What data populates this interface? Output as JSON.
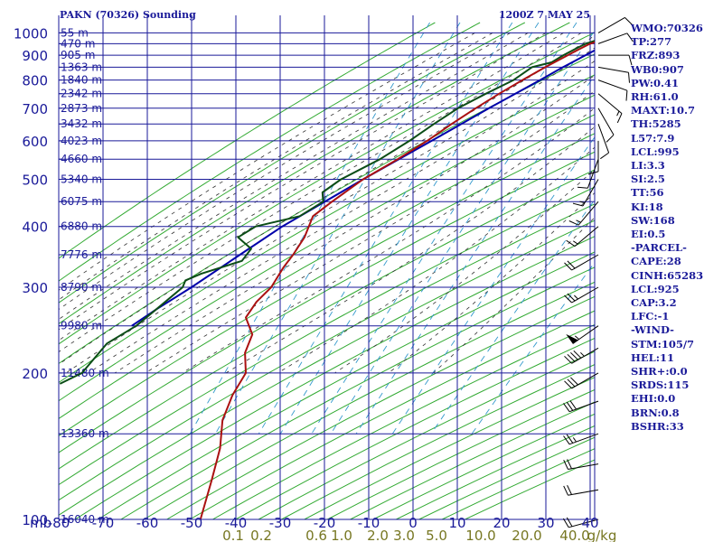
{
  "header": {
    "station": "PAKN (70326) Sounding",
    "datetime": "1200Z  7 MAY 25"
  },
  "colors": {
    "grid": "#1a1a99",
    "dry_adiabat": "#33aa33",
    "moist_adiabat": "#333333",
    "mixing_ratio": "#3399cc",
    "temperature": "#aa1111",
    "dewpoint": "#0b4d16",
    "parcel": "#0000aa",
    "wind_barb": "#000000",
    "mixing_label": "#777722"
  },
  "chart_data": {
    "type": "skew-t",
    "pressure_levels": [
      100,
      200,
      300,
      400,
      500,
      600,
      700,
      800,
      900,
      1000
    ],
    "pressure_tick_labels": [
      "100",
      "200",
      "300",
      "400",
      "500",
      "600",
      "700",
      "800",
      "900",
      "1000"
    ],
    "unit_label": "mb",
    "temperature_ticks": [
      -80,
      -70,
      -60,
      -50,
      -40,
      -30,
      -20,
      -10,
      0,
      10,
      20,
      30,
      40
    ],
    "temperature_tick_labels": [
      "-80",
      "-70",
      "-60",
      "-50",
      "-40",
      "-30",
      "-20",
      "-10",
      "0",
      "10",
      "20",
      "30",
      "40"
    ],
    "height_labels": [
      {
        "p": 100,
        "text": "16040 m"
      },
      {
        "p": 150,
        "text": "13360 m"
      },
      {
        "p": 200,
        "text": "11480 m"
      },
      {
        "p": 250,
        "text": "9980 m"
      },
      {
        "p": 300,
        "text": "8790 m"
      },
      {
        "p": 350,
        "text": "7776 m"
      },
      {
        "p": 400,
        "text": "6880 m"
      },
      {
        "p": 450,
        "text": "6075 m"
      },
      {
        "p": 500,
        "text": "5340 m"
      },
      {
        "p": 550,
        "text": "4660 m"
      },
      {
        "p": 600,
        "text": "4023 m"
      },
      {
        "p": 650,
        "text": "3432 m"
      },
      {
        "p": 700,
        "text": "2873 m"
      },
      {
        "p": 750,
        "text": "2342 m"
      },
      {
        "p": 800,
        "text": "1840 m"
      },
      {
        "p": 850,
        "text": "1363 m"
      },
      {
        "p": 900,
        "text": "905 m"
      },
      {
        "p": 950,
        "text": "470 m"
      },
      {
        "p": 1000,
        "text": "55 m"
      }
    ],
    "mixing_ratio_labels": [
      "0.1",
      "0.2",
      "0.6",
      "1.0",
      "2.0",
      "3.0",
      "5.0",
      "10.0",
      "20.0",
      "40.0",
      "g/kg"
    ],
    "temperature_profile": [
      [
        1004,
        1.5
      ],
      [
        975,
        0.5
      ],
      [
        950,
        -3
      ],
      [
        925,
        -5
      ],
      [
        900,
        -7
      ],
      [
        850,
        -11
      ],
      [
        800,
        -15
      ],
      [
        750,
        -19
      ],
      [
        700,
        -23
      ],
      [
        650,
        -27
      ],
      [
        600,
        -31
      ],
      [
        550,
        -36
      ],
      [
        500,
        -42
      ],
      [
        450,
        -47
      ],
      [
        420,
        -50
      ],
      [
        400,
        -50
      ],
      [
        380,
        -50
      ],
      [
        350,
        -51
      ],
      [
        330,
        -52
      ],
      [
        300,
        -53
      ],
      [
        280,
        -55
      ],
      [
        260,
        -56
      ],
      [
        240,
        -53
      ],
      [
        220,
        -53
      ],
      [
        200,
        -51
      ],
      [
        180,
        -52
      ],
      [
        160,
        -52
      ],
      [
        140,
        -50
      ],
      [
        120,
        -49
      ],
      [
        100,
        -48
      ]
    ],
    "dewpoint_profile": [
      [
        1004,
        0.5
      ],
      [
        980,
        0
      ],
      [
        950,
        -4
      ],
      [
        925,
        -6
      ],
      [
        900,
        -8
      ],
      [
        870,
        -10
      ],
      [
        850,
        -14
      ],
      [
        800,
        -17
      ],
      [
        750,
        -22
      ],
      [
        700,
        -27
      ],
      [
        650,
        -31
      ],
      [
        600,
        -35
      ],
      [
        550,
        -40
      ],
      [
        500,
        -47
      ],
      [
        470,
        -50
      ],
      [
        450,
        -49
      ],
      [
        420,
        -53
      ],
      [
        400,
        -62
      ],
      [
        380,
        -65
      ],
      [
        360,
        -61
      ],
      [
        340,
        -62
      ],
      [
        320,
        -70
      ],
      [
        310,
        -73
      ],
      [
        300,
        -73
      ],
      [
        270,
        -77
      ],
      [
        250,
        -80
      ],
      [
        230,
        -85
      ],
      [
        200,
        -88
      ],
      [
        190,
        -92
      ]
    ],
    "parcel_profile": [
      [
        1004,
        4.3
      ],
      [
        925,
        -1
      ],
      [
        850,
        -7
      ],
      [
        800,
        -11
      ],
      [
        700,
        -20
      ],
      [
        600,
        -30
      ],
      [
        500,
        -42
      ],
      [
        400,
        -56
      ],
      [
        350,
        -63
      ],
      [
        300,
        -71
      ],
      [
        270,
        -77
      ],
      [
        250,
        -81
      ]
    ],
    "wind_barbs": [
      {
        "p": 1000,
        "dir": 60,
        "spd": 10
      },
      {
        "p": 950,
        "dir": 70,
        "spd": 10
      },
      {
        "p": 900,
        "dir": 90,
        "spd": 10
      },
      {
        "p": 850,
        "dir": 100,
        "spd": 10
      },
      {
        "p": 800,
        "dir": 110,
        "spd": 10
      },
      {
        "p": 750,
        "dir": 130,
        "spd": 15
      },
      {
        "p": 700,
        "dir": 150,
        "spd": 10
      },
      {
        "p": 650,
        "dir": 160,
        "spd": 10
      },
      {
        "p": 600,
        "dir": 180,
        "spd": 10
      },
      {
        "p": 550,
        "dir": 200,
        "spd": 10
      },
      {
        "p": 500,
        "dir": 210,
        "spd": 15
      },
      {
        "p": 450,
        "dir": 220,
        "spd": 15
      },
      {
        "p": 400,
        "dir": 230,
        "spd": 15
      },
      {
        "p": 350,
        "dir": 240,
        "spd": 20
      },
      {
        "p": 300,
        "dir": 240,
        "spd": 25
      },
      {
        "p": 250,
        "dir": 235,
        "spd": 55
      },
      {
        "p": 225,
        "dir": 240,
        "spd": 45
      },
      {
        "p": 200,
        "dir": 240,
        "spd": 30
      },
      {
        "p": 175,
        "dir": 250,
        "spd": 30
      },
      {
        "p": 150,
        "dir": 250,
        "spd": 25
      },
      {
        "p": 130,
        "dir": 260,
        "spd": 20
      },
      {
        "p": 115,
        "dir": 260,
        "spd": 20
      },
      {
        "p": 100,
        "dir": 255,
        "spd": 20
      }
    ],
    "grid": true
  },
  "indices": [
    "WMO:70326",
    "TP:277",
    "FRZ:893",
    "WB0:907",
    "PW:0.41",
    "RH:61.0",
    "MAXT:10.7",
    "TH:5285",
    "L57:7.9",
    "LCL:995",
    "LI:3.3",
    "SI:2.5",
    "TT:56",
    "KI:18",
    "SW:168",
    "EI:0.5",
    "-PARCEL-",
    "CAPE:28",
    "CINH:65283",
    "LCL:925",
    "CAP:3.2",
    "LFC:-1",
    "-WIND-",
    "STM:105/7",
    "HEL:11",
    "SHR+:0.0",
    "SRDS:115",
    "EHI:0.0",
    "BRN:0.8",
    "BSHR:33"
  ]
}
